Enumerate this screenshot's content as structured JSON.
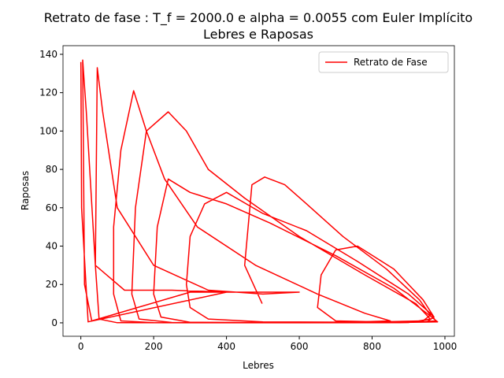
{
  "chart_data": {
    "type": "line",
    "title": "Retrato de fase : T_f = 2000.0 e alpha = 0.0055 com Euler Implícito",
    "subtitle": "Lebres e Raposas",
    "xlabel": "Lebres",
    "ylabel": "Raposas",
    "xlim": [
      -49,
      1026
    ],
    "ylim": [
      -7,
      144.5
    ],
    "xticks": [
      0,
      200,
      400,
      600,
      800,
      1000
    ],
    "yticks": [
      0,
      20,
      40,
      60,
      80,
      100,
      120,
      140
    ],
    "legend": "upper right",
    "x": [
      498,
      450,
      470,
      505,
      560,
      620,
      720,
      840,
      930,
      960,
      940,
      820,
      700,
      650,
      660,
      700,
      760,
      860,
      940,
      970,
      950,
      800,
      500,
      350,
      300,
      290,
      300,
      340,
      400,
      500,
      620,
      760,
      900,
      960,
      975,
      900,
      600,
      300,
      220,
      200,
      210,
      240,
      300,
      400,
      520,
      700,
      860,
      950,
      980,
      850,
      500,
      250,
      160,
      140,
      150,
      180,
      240,
      290,
      350,
      450,
      600,
      780,
      920,
      960,
      900,
      500,
      200,
      110,
      90,
      90,
      110,
      145,
      180,
      230,
      320,
      480,
      650,
      780,
      850,
      700,
      300,
      100,
      50,
      40,
      45,
      60,
      100,
      200,
      350,
      500,
      600,
      300,
      30,
      10,
      5,
      15,
      40,
      120,
      250,
      400,
      20,
      2,
      0
    ],
    "series": [
      {
        "name": "Retrato de Fase",
        "color": "#ff0000",
        "values": [
          10,
          30,
          72,
          76,
          72,
          62,
          45,
          28,
          12,
          4,
          1,
          0.5,
          1,
          8,
          25,
          38,
          40,
          28,
          12,
          3,
          0.5,
          0.3,
          0.5,
          2,
          8,
          20,
          45,
          62,
          68,
          57,
          48,
          32,
          15,
          5,
          1,
          0.2,
          0.1,
          0.3,
          3,
          15,
          50,
          75,
          68,
          62,
          52,
          35,
          18,
          5,
          0.5,
          0.1,
          0.05,
          0.2,
          2,
          15,
          60,
          100,
          110,
          100,
          80,
          65,
          45,
          25,
          10,
          2,
          0.1,
          0.02,
          0.05,
          1,
          15,
          50,
          90,
          121,
          100,
          75,
          50,
          30,
          15,
          5,
          1,
          0.05,
          0.01,
          0.05,
          2,
          30,
          133,
          110,
          60,
          30,
          17,
          15,
          16,
          16,
          1,
          20,
          137,
          110,
          30,
          17,
          17,
          16,
          0.5,
          60,
          136
        ]
      }
    ]
  }
}
